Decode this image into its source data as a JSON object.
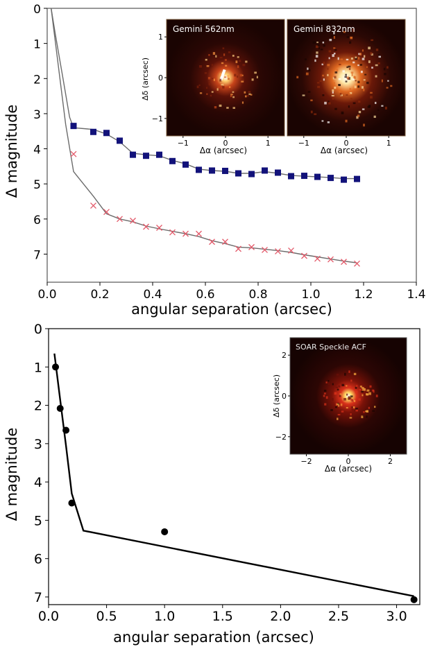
{
  "chart_data": [
    {
      "type": "line",
      "xlabel": "angular separation (arcsec)",
      "ylabel": "Δ magnitude",
      "xlim": [
        0.0,
        1.4
      ],
      "ylim": [
        7.8,
        0
      ],
      "y_inverted": true,
      "x_ticks": [
        "0.0",
        "0.2",
        "0.4",
        "0.6",
        "0.8",
        "1.0",
        "1.2",
        "1.4"
      ],
      "y_ticks": [
        "0",
        "1",
        "2",
        "3",
        "4",
        "5",
        "6",
        "7"
      ],
      "grid": false,
      "series": [
        {
          "marker": "square",
          "color": "#12127a",
          "x": [
            0.1,
            0.175,
            0.225,
            0.275,
            0.325,
            0.375,
            0.425,
            0.475,
            0.525,
            0.575,
            0.625,
            0.675,
            0.725,
            0.775,
            0.825,
            0.875,
            0.925,
            0.975,
            1.025,
            1.075,
            1.125,
            1.175
          ],
          "y": [
            3.35,
            3.52,
            3.55,
            3.77,
            4.17,
            4.2,
            4.17,
            4.35,
            4.45,
            4.6,
            4.62,
            4.63,
            4.7,
            4.72,
            4.62,
            4.68,
            4.78,
            4.77,
            4.8,
            4.83,
            4.88,
            4.86
          ]
        },
        {
          "marker": "x",
          "color": "#e35a6a",
          "x": [
            0.1,
            0.175,
            0.225,
            0.275,
            0.325,
            0.375,
            0.425,
            0.475,
            0.525,
            0.575,
            0.625,
            0.675,
            0.725,
            0.775,
            0.825,
            0.875,
            0.925,
            0.975,
            1.025,
            1.075,
            1.125,
            1.175
          ],
          "y": [
            4.15,
            5.62,
            5.8,
            6.0,
            6.05,
            6.22,
            6.25,
            6.38,
            6.42,
            6.42,
            6.65,
            6.65,
            6.85,
            6.8,
            6.88,
            6.92,
            6.9,
            7.05,
            7.13,
            7.15,
            7.22,
            7.27
          ]
        }
      ],
      "curves": [
        {
          "color": "#6b6b6b",
          "x": [
            0.015,
            0.03,
            0.06,
            0.085,
            0.1,
            0.175,
            0.225,
            0.275,
            0.325,
            0.375,
            0.425,
            0.475,
            0.525,
            0.575,
            0.625,
            0.675,
            0.725,
            0.775,
            0.825,
            0.875,
            0.925,
            0.975,
            1.025,
            1.075,
            1.125,
            1.175
          ],
          "y": [
            0.0,
            0.7,
            2.0,
            3.1,
            3.4,
            3.45,
            3.58,
            3.8,
            4.13,
            4.17,
            4.2,
            4.33,
            4.43,
            4.58,
            4.62,
            4.64,
            4.7,
            4.7,
            4.65,
            4.7,
            4.76,
            4.78,
            4.8,
            4.82,
            4.85,
            4.85
          ]
        },
        {
          "color": "#6b6b6b",
          "x": [
            0.015,
            0.04,
            0.07,
            0.1,
            0.175,
            0.225,
            0.275,
            0.325,
            0.375,
            0.425,
            0.475,
            0.525,
            0.575,
            0.625,
            0.675,
            0.725,
            0.775,
            0.825,
            0.875,
            0.925,
            0.975,
            1.025,
            1.075,
            1.125,
            1.175
          ],
          "y": [
            0.0,
            1.5,
            3.3,
            4.65,
            5.35,
            5.85,
            6.0,
            6.08,
            6.2,
            6.28,
            6.35,
            6.42,
            6.5,
            6.62,
            6.7,
            6.8,
            6.82,
            6.86,
            6.9,
            6.95,
            7.02,
            7.08,
            7.14,
            7.2,
            7.25
          ]
        }
      ],
      "insets": [
        {
          "label": "Gemini 562nm",
          "xlabel": "Δα (arcsec)",
          "ylabel": "Δδ (arcsec)",
          "x_ticks": [
            "−1",
            "0",
            "1"
          ],
          "y_ticks": [
            "1",
            "0",
            "−1"
          ]
        },
        {
          "label": "Gemini 832nm",
          "xlabel": "Δα (arcsec)",
          "x_ticks": [
            "−1",
            "0",
            "1"
          ]
        }
      ]
    },
    {
      "type": "line",
      "xlabel": "angular separation (arcsec)",
      "ylabel": "Δ magnitude",
      "xlim": [
        0.0,
        3.2
      ],
      "ylim": [
        7.2,
        0
      ],
      "y_inverted": true,
      "x_ticks": [
        "0.0",
        "0.5",
        "1.0",
        "1.5",
        "2.0",
        "2.5",
        "3.0"
      ],
      "y_ticks": [
        "0",
        "1",
        "2",
        "3",
        "4",
        "5",
        "6",
        "7"
      ],
      "grid": false,
      "series": [
        {
          "marker": "circle",
          "color": "#000000",
          "x": [
            0.06,
            0.1,
            0.15,
            0.2,
            1.0,
            3.15
          ],
          "y": [
            1.0,
            2.08,
            2.65,
            4.55,
            5.3,
            7.07
          ]
        }
      ],
      "curves": [
        {
          "color": "#000000",
          "x": [
            0.05,
            0.1,
            0.15,
            0.2,
            0.3,
            3.15
          ],
          "y": [
            0.65,
            1.85,
            3.05,
            4.3,
            5.27,
            6.98
          ]
        }
      ],
      "insets": [
        {
          "label": "SOAR Speckle ACF",
          "xlabel": "Δα (arcsec)",
          "ylabel": "Δδ (arcsec)",
          "x_ticks": [
            "−2",
            "0",
            "2"
          ],
          "y_ticks": [
            "2",
            "0",
            "−2"
          ]
        }
      ]
    }
  ]
}
